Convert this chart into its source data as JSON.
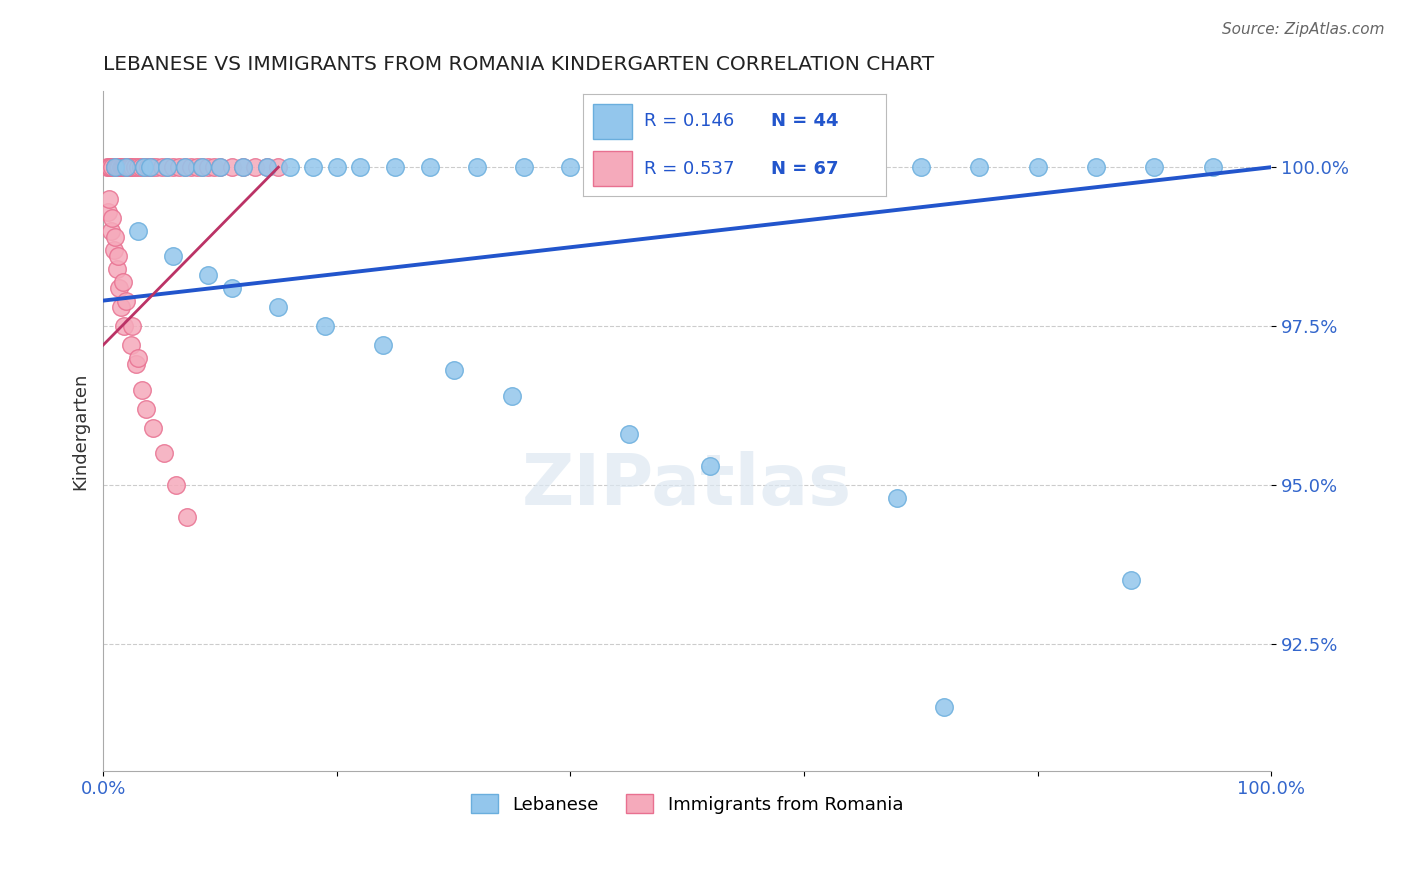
{
  "title": "LEBANESE VS IMMIGRANTS FROM ROMANIA KINDERGARTEN CORRELATION CHART",
  "source": "Source: ZipAtlas.com",
  "ylabel": "Kindergarten",
  "xmin": 0.0,
  "xmax": 100.0,
  "ymin": 90.5,
  "ymax": 101.2,
  "yticks": [
    100.0,
    97.5,
    95.0,
    92.5
  ],
  "ytick_labels": [
    "100.0%",
    "97.5%",
    "95.0%",
    "92.5%"
  ],
  "xticks": [
    0.0,
    20.0,
    40.0,
    60.0,
    80.0,
    100.0
  ],
  "xtick_labels": [
    "0.0%",
    "",
    "",
    "",
    "",
    "100.0%"
  ],
  "grid_color": "#cccccc",
  "background_color": "#ffffff",
  "blue_color": "#93C6EC",
  "blue_edge_color": "#6AAEDD",
  "pink_color": "#F5AABB",
  "pink_edge_color": "#E87090",
  "line_color": "#2255CC",
  "pink_line_color": "#BB3366",
  "R_blue": 0.146,
  "N_blue": 44,
  "R_pink": 0.537,
  "N_pink": 67,
  "legend_blue_label": "Lebanese",
  "legend_pink_label": "Immigrants from Romania",
  "watermark": "ZIPatlas",
  "blue_scatter_x": [
    1.0,
    2.0,
    3.5,
    4.0,
    5.5,
    7.0,
    8.5,
    10.0,
    12.0,
    14.0,
    16.0,
    18.0,
    20.0,
    22.0,
    25.0,
    28.0,
    32.0,
    36.0,
    40.0,
    44.0,
    50.0,
    55.0,
    60.0,
    65.0,
    70.0,
    75.0,
    80.0,
    85.0,
    90.0,
    95.0,
    3.0,
    6.0,
    9.0,
    11.0,
    15.0,
    19.0,
    24.0,
    30.0,
    35.0,
    45.0,
    52.0,
    68.0,
    88.0,
    72.0
  ],
  "blue_scatter_y": [
    100.0,
    100.0,
    100.0,
    100.0,
    100.0,
    100.0,
    100.0,
    100.0,
    100.0,
    100.0,
    100.0,
    100.0,
    100.0,
    100.0,
    100.0,
    100.0,
    100.0,
    100.0,
    100.0,
    100.0,
    100.0,
    100.0,
    100.0,
    100.0,
    100.0,
    100.0,
    100.0,
    100.0,
    100.0,
    100.0,
    99.0,
    98.6,
    98.3,
    98.1,
    97.8,
    97.5,
    97.2,
    96.8,
    96.4,
    95.8,
    95.3,
    94.8,
    93.5,
    91.5
  ],
  "pink_scatter_x": [
    0.3,
    0.5,
    0.6,
    0.8,
    1.0,
    1.0,
    1.1,
    1.2,
    1.3,
    1.4,
    1.5,
    1.6,
    1.7,
    1.8,
    1.9,
    2.0,
    2.1,
    2.2,
    2.3,
    2.5,
    2.7,
    3.0,
    3.2,
    3.5,
    3.8,
    4.0,
    4.2,
    4.5,
    5.0,
    5.5,
    6.0,
    6.5,
    7.0,
    7.5,
    8.0,
    8.5,
    9.0,
    9.5,
    10.0,
    11.0,
    12.0,
    13.0,
    14.0,
    15.0,
    0.4,
    0.7,
    0.9,
    1.15,
    1.35,
    1.55,
    1.75,
    2.4,
    2.8,
    3.3,
    3.7,
    4.3,
    5.2,
    6.2,
    7.2,
    0.5,
    0.8,
    1.0,
    1.3,
    1.7,
    2.0,
    2.5,
    3.0
  ],
  "pink_scatter_y": [
    100.0,
    100.0,
    100.0,
    100.0,
    100.0,
    100.0,
    100.0,
    100.0,
    100.0,
    100.0,
    100.0,
    100.0,
    100.0,
    100.0,
    100.0,
    100.0,
    100.0,
    100.0,
    100.0,
    100.0,
    100.0,
    100.0,
    100.0,
    100.0,
    100.0,
    100.0,
    100.0,
    100.0,
    100.0,
    100.0,
    100.0,
    100.0,
    100.0,
    100.0,
    100.0,
    100.0,
    100.0,
    100.0,
    100.0,
    100.0,
    100.0,
    100.0,
    100.0,
    100.0,
    99.3,
    99.0,
    98.7,
    98.4,
    98.1,
    97.8,
    97.5,
    97.2,
    96.9,
    96.5,
    96.2,
    95.9,
    95.5,
    95.0,
    94.5,
    99.5,
    99.2,
    98.9,
    98.6,
    98.2,
    97.9,
    97.5,
    97.0
  ],
  "blue_line_x0": 0.0,
  "blue_line_y0": 97.9,
  "blue_line_x1": 100.0,
  "blue_line_y1": 100.0,
  "pink_line_x0": 0.0,
  "pink_line_y0": 97.2,
  "pink_line_x1": 15.0,
  "pink_line_y1": 100.0
}
